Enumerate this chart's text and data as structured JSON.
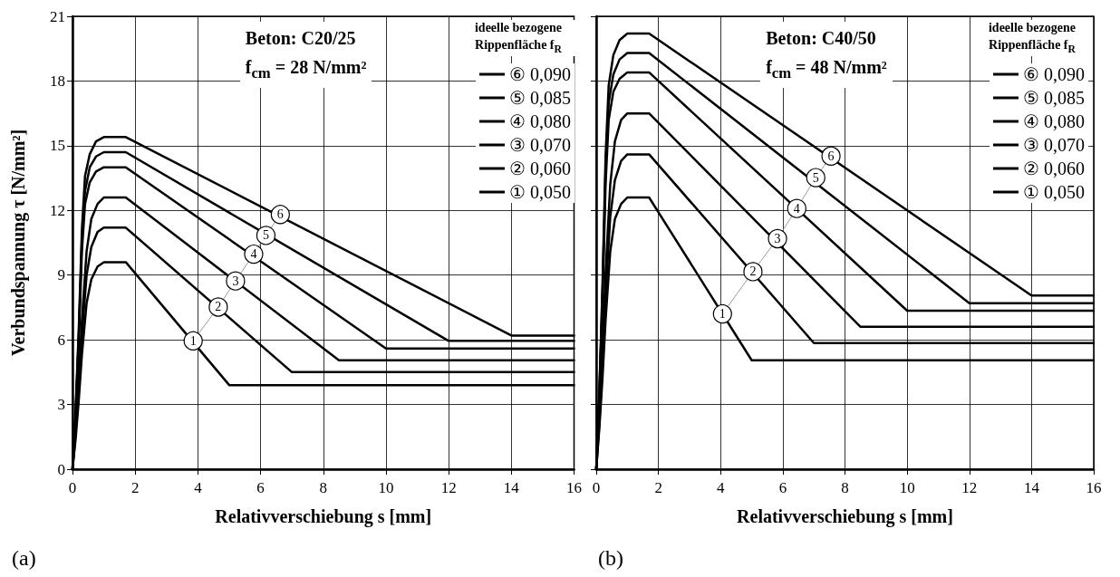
{
  "chart_data": [
    {
      "type": "line",
      "title": "(a)",
      "xlabel": "Relativverschiebung s [mm]",
      "ylabel": "Verbundspannung τ [N/mm²]",
      "legend_title": "ideelle bezogene Rippenfläche f$_{R}$",
      "xlim": [
        0,
        16
      ],
      "ylim": [
        0,
        21
      ],
      "xticks": [
        0,
        2,
        4,
        6,
        8,
        10,
        12,
        14,
        16
      ],
      "yticks": [
        0,
        3,
        6,
        9,
        12,
        15,
        18,
        21
      ],
      "grid": true,
      "legend": "top right",
      "marker": "none",
      "line_style": "solid",
      "series": [
        {
          "name": "⑥ 0,090",
          "color": "#000000",
          "x": [
            0,
            0.1,
            0.2,
            0.3,
            0.4,
            0.55,
            0.75,
            1.0,
            1.7,
            14,
            16
          ],
          "values": [
            0,
            2.8,
            6.5,
            11.1,
            13.6,
            14.6,
            15.2,
            15.4,
            15.4,
            6.2,
            6.2
          ]
        },
        {
          "name": "⑤ 0,085",
          "color": "#000000",
          "x": [
            0,
            0.1,
            0.2,
            0.3,
            0.4,
            0.55,
            0.75,
            1.0,
            1.7,
            12,
            16
          ],
          "values": [
            0,
            2.6,
            6.2,
            10.6,
            12.9,
            14.0,
            14.5,
            14.7,
            14.7,
            5.95,
            5.95
          ]
        },
        {
          "name": "④ 0,080",
          "color": "#000000",
          "x": [
            0,
            0.1,
            0.2,
            0.3,
            0.4,
            0.55,
            0.75,
            1.0,
            1.7,
            10,
            16
          ],
          "values": [
            0,
            2.5,
            5.9,
            10.1,
            12.3,
            13.3,
            13.8,
            14.0,
            14.0,
            5.6,
            5.6
          ]
        },
        {
          "name": "③ 0,070",
          "color": "#000000",
          "x": [
            0,
            0.1,
            0.2,
            0.3,
            0.45,
            0.6,
            0.8,
            1.0,
            1.7,
            8.5,
            16
          ],
          "values": [
            0,
            1.9,
            4.2,
            6.9,
            10.1,
            11.6,
            12.3,
            12.6,
            12.6,
            5.05,
            5.05
          ]
        },
        {
          "name": "② 0,060",
          "color": "#000000",
          "x": [
            0,
            0.1,
            0.2,
            0.3,
            0.45,
            0.6,
            0.8,
            1.0,
            1.7,
            7,
            16
          ],
          "values": [
            0,
            1.7,
            3.7,
            6.2,
            9.0,
            10.3,
            11.0,
            11.2,
            11.2,
            4.5,
            4.5
          ]
        },
        {
          "name": "① 0,050",
          "color": "#000000",
          "x": [
            0,
            0.1,
            0.2,
            0.3,
            0.45,
            0.6,
            0.8,
            1.0,
            1.7,
            5,
            16
          ],
          "values": [
            0,
            1.4,
            3.2,
            5.3,
            7.7,
            8.8,
            9.4,
            9.6,
            9.6,
            3.9,
            3.9
          ]
        },
        {
          "color": "#888888",
          "line_style": "dotted",
          "marker": "circle",
          "x": [
            3.85,
            4.65,
            5.2,
            5.78,
            6.17,
            6.63
          ],
          "values": [
            5.95,
            7.52,
            8.73,
            9.97,
            10.84,
            11.81
          ]
        }
      ],
      "annotations": [
        "Beton:  C20/25",
        "f$_{cm}$ = 28 N/mm²",
        {
          "text": "1",
          "x": 3.85,
          "y": 5.95
        },
        {
          "text": "2",
          "x": 4.65,
          "y": 7.52
        },
        {
          "text": "3",
          "x": 5.2,
          "y": 8.73
        },
        {
          "text": "4",
          "x": 5.78,
          "y": 9.97
        },
        {
          "text": "5",
          "x": 6.17,
          "y": 10.84
        },
        {
          "text": "6",
          "x": 6.63,
          "y": 11.81
        }
      ]
    },
    {
      "type": "line",
      "title": "(b)",
      "xlabel": "Relativverschiebung s [mm]",
      "legend_title": "ideelle bezogene Rippenfläche f$_{R}$",
      "xlim": [
        0,
        16
      ],
      "ylim": [
        0,
        21
      ],
      "xticks": [
        0,
        2,
        4,
        6,
        8,
        10,
        12,
        14,
        16
      ],
      "yticks": [
        0,
        3,
        6,
        9,
        12,
        15,
        18,
        21
      ],
      "tick_labels": "x",
      "grid": true,
      "legend": "top right",
      "marker": "none",
      "line_style": "solid",
      "series": [
        {
          "name": "⑥ 0,090",
          "color": "#000000",
          "x": [
            0,
            0.1,
            0.2,
            0.3,
            0.4,
            0.55,
            0.75,
            1.0,
            1.7,
            14,
            16
          ],
          "values": [
            0,
            3.6,
            8.5,
            14.5,
            17.8,
            19.2,
            19.9,
            20.2,
            20.2,
            8.05,
            8.05
          ]
        },
        {
          "name": "⑤ 0,085",
          "color": "#000000",
          "x": [
            0,
            0.1,
            0.2,
            0.3,
            0.4,
            0.55,
            0.75,
            1.0,
            1.7,
            12,
            16
          ],
          "values": [
            0,
            3.5,
            8.1,
            13.9,
            17.0,
            18.3,
            19.0,
            19.3,
            19.3,
            7.7,
            7.7
          ]
        },
        {
          "name": "④ 0,080",
          "color": "#000000",
          "x": [
            0,
            0.1,
            0.2,
            0.3,
            0.4,
            0.55,
            0.75,
            1.0,
            1.7,
            10,
            16
          ],
          "values": [
            0,
            3.3,
            7.7,
            13.2,
            16.2,
            17.5,
            18.1,
            18.4,
            18.4,
            7.35,
            7.35
          ]
        },
        {
          "name": "③ 0,070",
          "color": "#000000",
          "x": [
            0,
            0.1,
            0.2,
            0.3,
            0.45,
            0.6,
            0.8,
            1.0,
            1.7,
            8.5,
            16
          ],
          "values": [
            0,
            2.5,
            5.4,
            9.1,
            13.2,
            15.2,
            16.2,
            16.5,
            16.5,
            6.6,
            6.6
          ]
        },
        {
          "name": "② 0,060",
          "color": "#000000",
          "x": [
            0,
            0.1,
            0.2,
            0.3,
            0.45,
            0.6,
            0.8,
            1.0,
            1.7,
            7,
            16
          ],
          "values": [
            0,
            2.2,
            4.8,
            8.0,
            11.7,
            13.4,
            14.3,
            14.6,
            14.6,
            5.85,
            5.85
          ]
        },
        {
          "name": "① 0,050",
          "color": "#000000",
          "x": [
            0,
            0.1,
            0.2,
            0.3,
            0.45,
            0.6,
            0.8,
            1.0,
            1.7,
            5,
            16
          ],
          "values": [
            0,
            1.9,
            4.2,
            6.9,
            10.1,
            11.6,
            12.3,
            12.6,
            12.6,
            5.05,
            5.05
          ]
        },
        {
          "color": "#888888",
          "line_style": "dotted",
          "marker": "circle",
          "x": [
            4.06,
            5.04,
            5.83,
            6.45,
            7.06,
            7.55
          ],
          "values": [
            7.2,
            9.16,
            10.69,
            12.09,
            13.52,
            14.52
          ]
        }
      ],
      "annotations": [
        "Beton:  C40/50",
        "f$_{cm}$ = 48 N/mm²",
        {
          "text": "1",
          "x": 4.06,
          "y": 7.2
        },
        {
          "text": "2",
          "x": 5.04,
          "y": 9.16
        },
        {
          "text": "3",
          "x": 5.83,
          "y": 10.69
        },
        {
          "text": "4",
          "x": 6.45,
          "y": 12.09
        },
        {
          "text": "5",
          "x": 7.06,
          "y": 13.52
        },
        {
          "text": "6",
          "x": 7.55,
          "y": 14.52
        }
      ]
    }
  ]
}
